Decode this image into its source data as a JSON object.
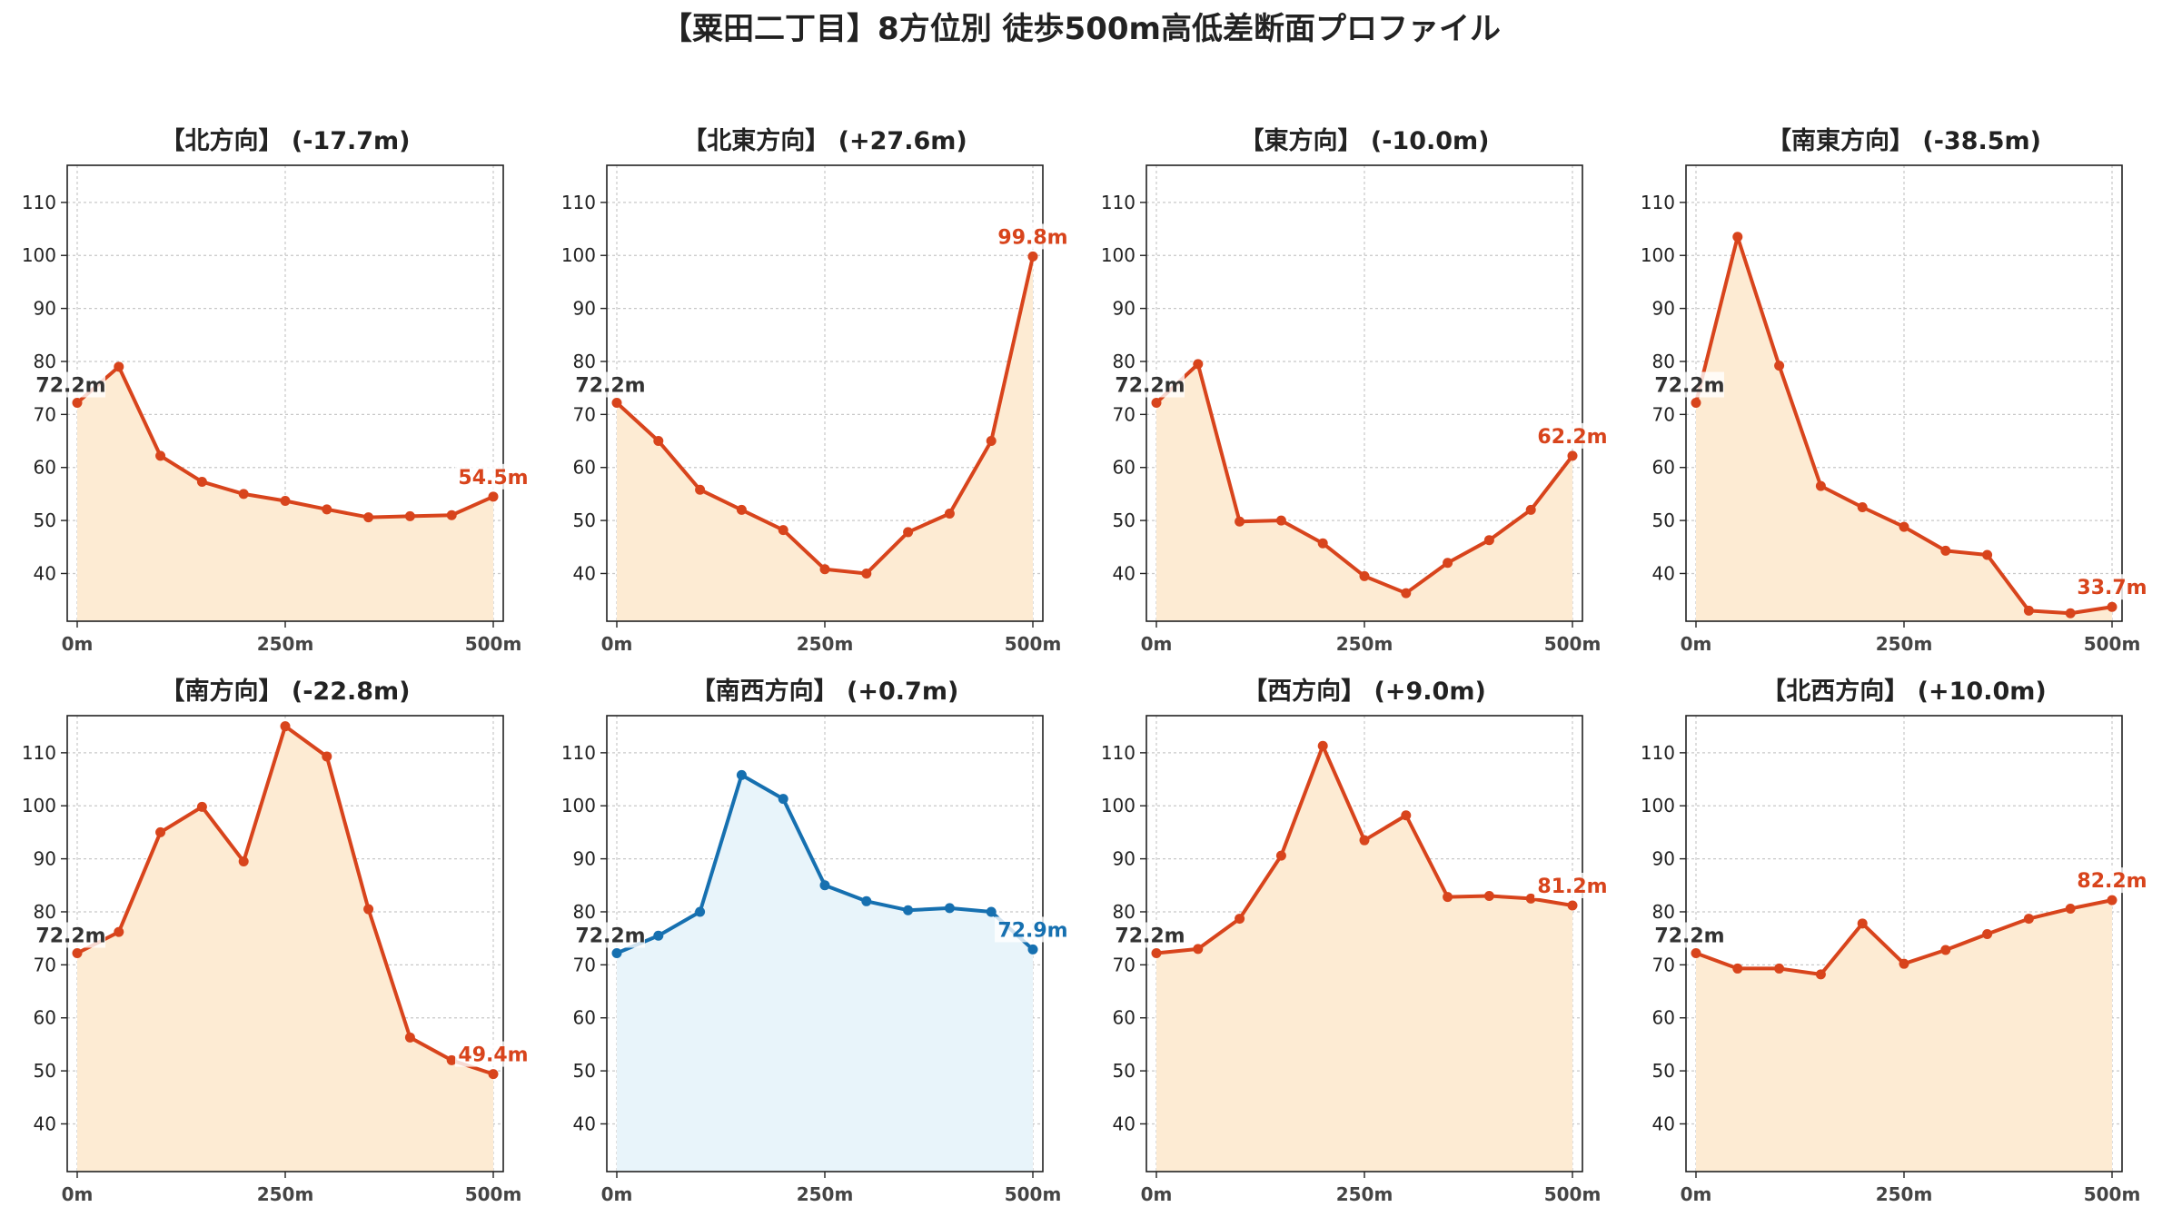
{
  "suptitle": "【粟田二丁目】8方位別 徒歩500m高低差断面プロファイル",
  "chart_data": [
    {
      "type": "area",
      "title": "【北方向】 (-17.7m)",
      "x": [
        0,
        50,
        100,
        150,
        200,
        250,
        300,
        350,
        400,
        450,
        500
      ],
      "values": [
        72.2,
        79.0,
        62.2,
        57.3,
        55.0,
        53.7,
        52.1,
        50.6,
        50.8,
        51.0,
        54.5
      ],
      "start_label": "72.2m",
      "end_label": "54.5m",
      "color": "#d8441c",
      "fill": "#fdebd3"
    },
    {
      "type": "area",
      "title": "【北東方向】 (+27.6m)",
      "x": [
        0,
        50,
        100,
        150,
        200,
        250,
        300,
        350,
        400,
        450,
        500
      ],
      "values": [
        72.2,
        65.0,
        55.8,
        52.0,
        48.2,
        40.8,
        40.0,
        47.8,
        51.3,
        65.0,
        99.8
      ],
      "start_label": "72.2m",
      "end_label": "99.8m",
      "color": "#d8441c",
      "fill": "#fdebd3"
    },
    {
      "type": "area",
      "title": "【東方向】 (-10.0m)",
      "x": [
        0,
        50,
        100,
        150,
        200,
        250,
        300,
        350,
        400,
        450,
        500
      ],
      "values": [
        72.2,
        79.5,
        49.8,
        50.0,
        45.7,
        39.5,
        36.3,
        42.0,
        46.3,
        52.0,
        62.2
      ],
      "start_label": "72.2m",
      "end_label": "62.2m",
      "color": "#d8441c",
      "fill": "#fdebd3"
    },
    {
      "type": "area",
      "title": "【南東方向】 (-38.5m)",
      "x": [
        0,
        50,
        100,
        150,
        200,
        250,
        300,
        350,
        400,
        450,
        500
      ],
      "values": [
        72.2,
        103.5,
        79.2,
        56.5,
        52.5,
        48.8,
        44.3,
        43.5,
        33.0,
        32.5,
        33.7
      ],
      "start_label": "72.2m",
      "end_label": "33.7m",
      "color": "#d8441c",
      "fill": "#fdebd3"
    },
    {
      "type": "area",
      "title": "【南方向】 (-22.8m)",
      "x": [
        0,
        50,
        100,
        150,
        200,
        250,
        300,
        350,
        400,
        450,
        500
      ],
      "values": [
        72.2,
        76.2,
        95.0,
        99.8,
        89.5,
        115.0,
        109.3,
        80.5,
        56.3,
        52.0,
        49.4
      ],
      "start_label": "72.2m",
      "end_label": "49.4m",
      "color": "#d8441c",
      "fill": "#fdebd3"
    },
    {
      "type": "area",
      "title": "【南西方向】 (+0.7m)",
      "x": [
        0,
        50,
        100,
        150,
        200,
        250,
        300,
        350,
        400,
        450,
        500
      ],
      "values": [
        72.2,
        75.5,
        80.0,
        105.8,
        101.3,
        85.0,
        82.0,
        80.3,
        80.7,
        80.0,
        72.9
      ],
      "start_label": "72.2m",
      "end_label": "72.9m",
      "color": "#1670b0",
      "fill": "#e8f4fa"
    },
    {
      "type": "area",
      "title": "【西方向】 (+9.0m)",
      "x": [
        0,
        50,
        100,
        150,
        200,
        250,
        300,
        350,
        400,
        450,
        500
      ],
      "values": [
        72.2,
        73.0,
        78.7,
        90.6,
        111.3,
        93.5,
        98.2,
        82.8,
        83.0,
        82.5,
        81.2
      ],
      "start_label": "72.2m",
      "end_label": "81.2m",
      "color": "#d8441c",
      "fill": "#fdebd3"
    },
    {
      "type": "area",
      "title": "【北西方向】 (+10.0m)",
      "x": [
        0,
        50,
        100,
        150,
        200,
        250,
        300,
        350,
        400,
        450,
        500
      ],
      "values": [
        72.2,
        69.3,
        69.3,
        68.2,
        77.8,
        70.2,
        72.8,
        75.8,
        78.7,
        80.6,
        82.2
      ],
      "start_label": "72.2m",
      "end_label": "82.2m",
      "color": "#d8441c",
      "fill": "#fdebd3"
    }
  ],
  "axes": {
    "ylim": [
      31,
      117
    ],
    "xlim": [
      -12,
      512
    ],
    "yticks": [
      40,
      50,
      60,
      70,
      80,
      90,
      100,
      110
    ],
    "xticks": [
      0,
      250,
      500
    ],
    "xtick_labels": [
      "0m",
      "250m",
      "500m"
    ],
    "grid": true,
    "start_label_color": "#333333"
  }
}
